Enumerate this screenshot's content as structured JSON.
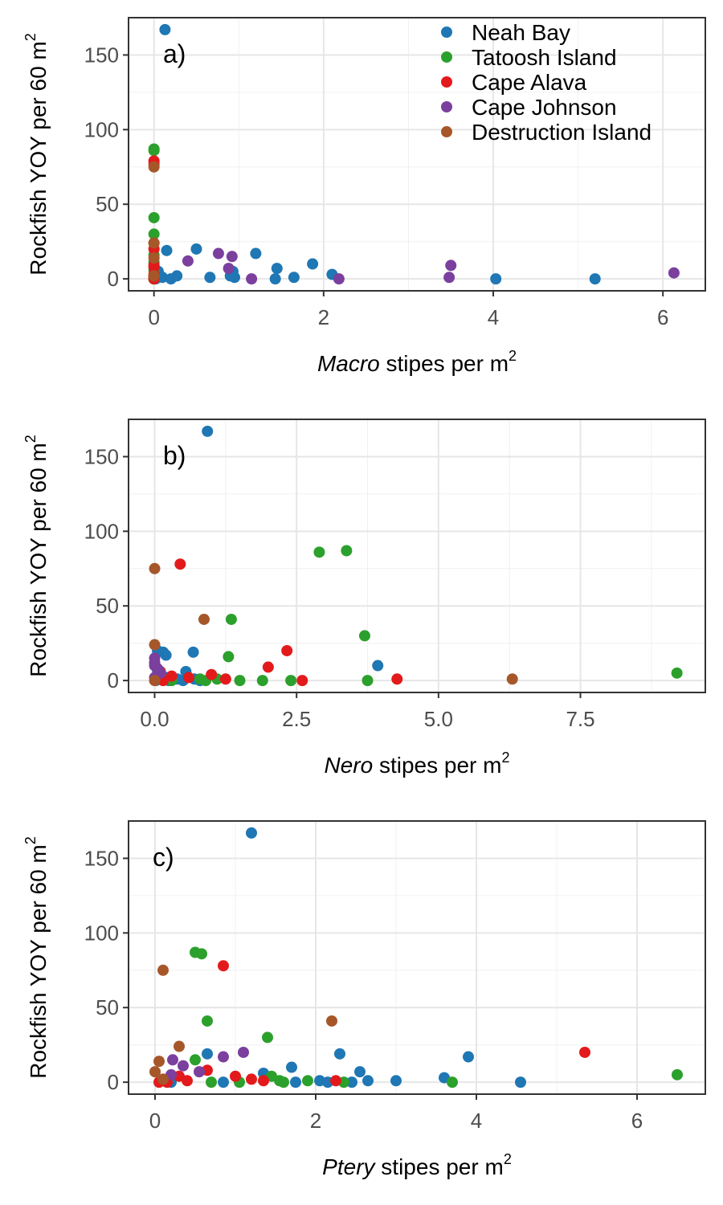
{
  "legend": {
    "placement": "top-right inside panel a",
    "entries": [
      {
        "name": "Neah Bay",
        "color": "#1f77b4"
      },
      {
        "name": "Tatoosh Island",
        "color": "#2ca02c"
      },
      {
        "name": "Cape Alava",
        "color": "#e31a1c"
      },
      {
        "name": "Cape Johnson",
        "color": "#7b3f9e"
      },
      {
        "name": "Destruction Island",
        "color": "#a6572a"
      }
    ]
  },
  "chart_data": [
    {
      "type": "scatter",
      "panel_label": "a)",
      "xlabel_italic": "Macro",
      "xlabel_rest": " stipes per m",
      "xlabel_sup": "2",
      "ylabel": "Rockfish YOY per 60 m",
      "ylabel_sup": "2",
      "xlim": [
        -0.3,
        6.5
      ],
      "ylim": [
        -8,
        175
      ],
      "x_ticks": [
        {
          "v": 0,
          "label": "0"
        },
        {
          "v": 2,
          "label": "2"
        },
        {
          "v": 4,
          "label": "4"
        },
        {
          "v": 6,
          "label": "6"
        }
      ],
      "y_ticks": [
        {
          "v": 0,
          "label": "0"
        },
        {
          "v": 50,
          "label": "50"
        },
        {
          "v": 100,
          "label": "100"
        },
        {
          "v": 150,
          "label": "150"
        }
      ],
      "grid": true,
      "series": [
        {
          "name": "Neah Bay",
          "color": "#1f77b4",
          "points": [
            [
              0.13,
              167
            ],
            [
              0.15,
              19
            ],
            [
              0.5,
              20
            ],
            [
              1.2,
              17
            ],
            [
              1.45,
              7
            ],
            [
              1.87,
              10
            ],
            [
              2.1,
              3
            ],
            [
              0.27,
              2
            ],
            [
              0.1,
              1
            ],
            [
              0.2,
              0
            ],
            [
              0.66,
              1
            ],
            [
              0.9,
              2
            ],
            [
              0.93,
              5
            ],
            [
              0.95,
              1
            ],
            [
              1.43,
              0
            ],
            [
              1.65,
              1
            ],
            [
              4.03,
              0
            ],
            [
              5.2,
              0
            ],
            [
              0.05,
              5
            ],
            [
              0.02,
              0
            ]
          ]
        },
        {
          "name": "Tatoosh Island",
          "color": "#2ca02c",
          "points": [
            [
              0,
              87
            ],
            [
              0,
              86
            ],
            [
              0,
              41
            ],
            [
              0,
              30
            ],
            [
              0,
              16
            ],
            [
              0,
              11
            ],
            [
              0,
              6
            ],
            [
              0,
              2
            ],
            [
              0,
              1
            ],
            [
              0,
              0
            ],
            [
              0,
              0
            ],
            [
              0,
              0
            ]
          ]
        },
        {
          "name": "Cape Alava",
          "color": "#e31a1c",
          "points": [
            [
              0,
              79
            ],
            [
              0,
              77
            ],
            [
              0,
              24
            ],
            [
              0,
              20
            ],
            [
              0,
              9
            ],
            [
              0,
              8
            ],
            [
              0,
              3
            ],
            [
              0,
              2
            ],
            [
              0,
              1
            ],
            [
              0,
              1
            ],
            [
              0,
              0
            ]
          ]
        },
        {
          "name": "Cape Johnson",
          "color": "#7b3f9e",
          "points": [
            [
              0.4,
              12
            ],
            [
              0.76,
              17
            ],
            [
              0.88,
              7
            ],
            [
              0.92,
              15
            ],
            [
              1.15,
              0
            ],
            [
              2.18,
              0
            ],
            [
              3.5,
              9
            ],
            [
              3.48,
              1
            ],
            [
              6.13,
              4
            ]
          ]
        },
        {
          "name": "Destruction Island",
          "color": "#a6572a",
          "points": [
            [
              0,
              75
            ],
            [
              0,
              24
            ],
            [
              0,
              14
            ],
            [
              0,
              2
            ]
          ]
        }
      ]
    },
    {
      "type": "scatter",
      "panel_label": "b)",
      "xlabel_italic": "Nero",
      "xlabel_rest": " stipes per m",
      "xlabel_sup": "2",
      "ylabel": "Rockfish YOY per 60 m",
      "ylabel_sup": "2",
      "xlim": [
        -0.46,
        9.7
      ],
      "ylim": [
        -8,
        175
      ],
      "x_ticks": [
        {
          "v": 0,
          "label": "0.0"
        },
        {
          "v": 2.5,
          "label": "2.5"
        },
        {
          "v": 5,
          "label": "5.0"
        },
        {
          "v": 7.5,
          "label": "7.5"
        }
      ],
      "y_ticks": [
        {
          "v": 0,
          "label": "0"
        },
        {
          "v": 50,
          "label": "50"
        },
        {
          "v": 100,
          "label": "100"
        },
        {
          "v": 150,
          "label": "150"
        }
      ],
      "grid": true,
      "series": [
        {
          "name": "Neah Bay",
          "color": "#1f77b4",
          "points": [
            [
              0.93,
              167
            ],
            [
              0.05,
              20
            ],
            [
              0.15,
              19
            ],
            [
              0.2,
              17
            ],
            [
              0.68,
              19
            ],
            [
              3.93,
              10
            ],
            [
              0.55,
              6
            ],
            [
              0.05,
              7
            ],
            [
              0.1,
              3
            ],
            [
              0.2,
              2
            ],
            [
              0.3,
              1
            ],
            [
              0.4,
              1
            ],
            [
              0.7,
              1
            ],
            [
              0.02,
              0
            ],
            [
              0.25,
              0
            ],
            [
              0.5,
              0
            ],
            [
              0.8,
              0
            ]
          ]
        },
        {
          "name": "Tatoosh Island",
          "color": "#2ca02c",
          "points": [
            [
              2.9,
              86
            ],
            [
              3.38,
              87
            ],
            [
              1.35,
              41
            ],
            [
              3.7,
              30
            ],
            [
              1.3,
              16
            ],
            [
              9.2,
              5
            ],
            [
              0.8,
              1
            ],
            [
              1.1,
              1
            ],
            [
              0.9,
              0
            ],
            [
              1.5,
              0
            ],
            [
              1.9,
              0
            ],
            [
              2.4,
              0
            ],
            [
              3.75,
              0
            ],
            [
              0.3,
              0
            ]
          ]
        },
        {
          "name": "Cape Alava",
          "color": "#e31a1c",
          "points": [
            [
              0.45,
              78
            ],
            [
              2.33,
              20
            ],
            [
              2,
              9
            ],
            [
              1.0,
              4
            ],
            [
              0.1,
              6
            ],
            [
              0.3,
              3
            ],
            [
              0.6,
              2
            ],
            [
              1.25,
              1
            ],
            [
              2.6,
              0
            ],
            [
              4.27,
              1
            ],
            [
              0.15,
              0
            ]
          ]
        },
        {
          "name": "Cape Johnson",
          "color": "#7b3f9e",
          "points": [
            [
              0,
              15
            ],
            [
              0,
              12
            ],
            [
              0,
              10
            ],
            [
              0.05,
              8
            ],
            [
              0.1,
              5
            ],
            [
              0,
              2
            ]
          ]
        },
        {
          "name": "Destruction Island",
          "color": "#a6572a",
          "points": [
            [
              0,
              75
            ],
            [
              0.87,
              41
            ],
            [
              0,
              24
            ],
            [
              6.3,
              1
            ],
            [
              0,
              0
            ]
          ]
        }
      ]
    },
    {
      "type": "scatter",
      "panel_label": "c)",
      "xlabel_italic": "Ptery",
      "xlabel_rest": " stipes per m",
      "xlabel_sup": "2",
      "ylabel": "Rockfish YOY per 60 m",
      "ylabel_sup": "2",
      "xlim": [
        -0.33,
        6.85
      ],
      "ylim": [
        -8,
        175
      ],
      "x_ticks": [
        {
          "v": 0,
          "label": "0"
        },
        {
          "v": 2,
          "label": "2"
        },
        {
          "v": 4,
          "label": "4"
        },
        {
          "v": 6,
          "label": "6"
        }
      ],
      "y_ticks": [
        {
          "v": 0,
          "label": "0"
        },
        {
          "v": 50,
          "label": "50"
        },
        {
          "v": 100,
          "label": "100"
        },
        {
          "v": 150,
          "label": "150"
        }
      ],
      "grid": true,
      "series": [
        {
          "name": "Neah Bay",
          "color": "#1f77b4",
          "points": [
            [
              1.2,
              167
            ],
            [
              0.65,
              19
            ],
            [
              2.3,
              19
            ],
            [
              3.9,
              17
            ],
            [
              1.7,
              10
            ],
            [
              1.35,
              6
            ],
            [
              2.55,
              7
            ],
            [
              3.6,
              3
            ],
            [
              2.05,
              1
            ],
            [
              2.65,
              1
            ],
            [
              3.0,
              1
            ],
            [
              2.45,
              0
            ],
            [
              4.55,
              0
            ],
            [
              1.75,
              0
            ],
            [
              0.2,
              0
            ],
            [
              0.85,
              0
            ],
            [
              2.15,
              0
            ]
          ]
        },
        {
          "name": "Tatoosh Island",
          "color": "#2ca02c",
          "points": [
            [
              0.5,
              87
            ],
            [
              0.58,
              86
            ],
            [
              0.65,
              41
            ],
            [
              1.4,
              30
            ],
            [
              0.5,
              15
            ],
            [
              6.5,
              5
            ],
            [
              1.45,
              4
            ],
            [
              1.55,
              1
            ],
            [
              1.9,
              1
            ],
            [
              2.35,
              0
            ],
            [
              3.7,
              0
            ],
            [
              0.7,
              0
            ],
            [
              1.05,
              0
            ],
            [
              1.6,
              0
            ]
          ]
        },
        {
          "name": "Cape Alava",
          "color": "#e31a1c",
          "points": [
            [
              0.85,
              78
            ],
            [
              5.35,
              20
            ],
            [
              0.65,
              8
            ],
            [
              0.3,
              4
            ],
            [
              1.0,
              4
            ],
            [
              0.1,
              2
            ],
            [
              0.4,
              1
            ],
            [
              1.2,
              2
            ],
            [
              1.35,
              1
            ],
            [
              2.25,
              1
            ],
            [
              0.05,
              0
            ],
            [
              0.15,
              0
            ]
          ]
        },
        {
          "name": "Cape Johnson",
          "color": "#7b3f9e",
          "points": [
            [
              0.22,
              15
            ],
            [
              0.85,
              17
            ],
            [
              1.1,
              20
            ],
            [
              0.35,
              11
            ],
            [
              0.55,
              7
            ],
            [
              0.2,
              5
            ]
          ]
        },
        {
          "name": "Destruction Island",
          "color": "#a6572a",
          "points": [
            [
              0.1,
              75
            ],
            [
              2.2,
              41
            ],
            [
              0.3,
              24
            ],
            [
              0.05,
              14
            ],
            [
              0.0,
              7
            ],
            [
              0.1,
              2
            ]
          ]
        }
      ]
    }
  ]
}
